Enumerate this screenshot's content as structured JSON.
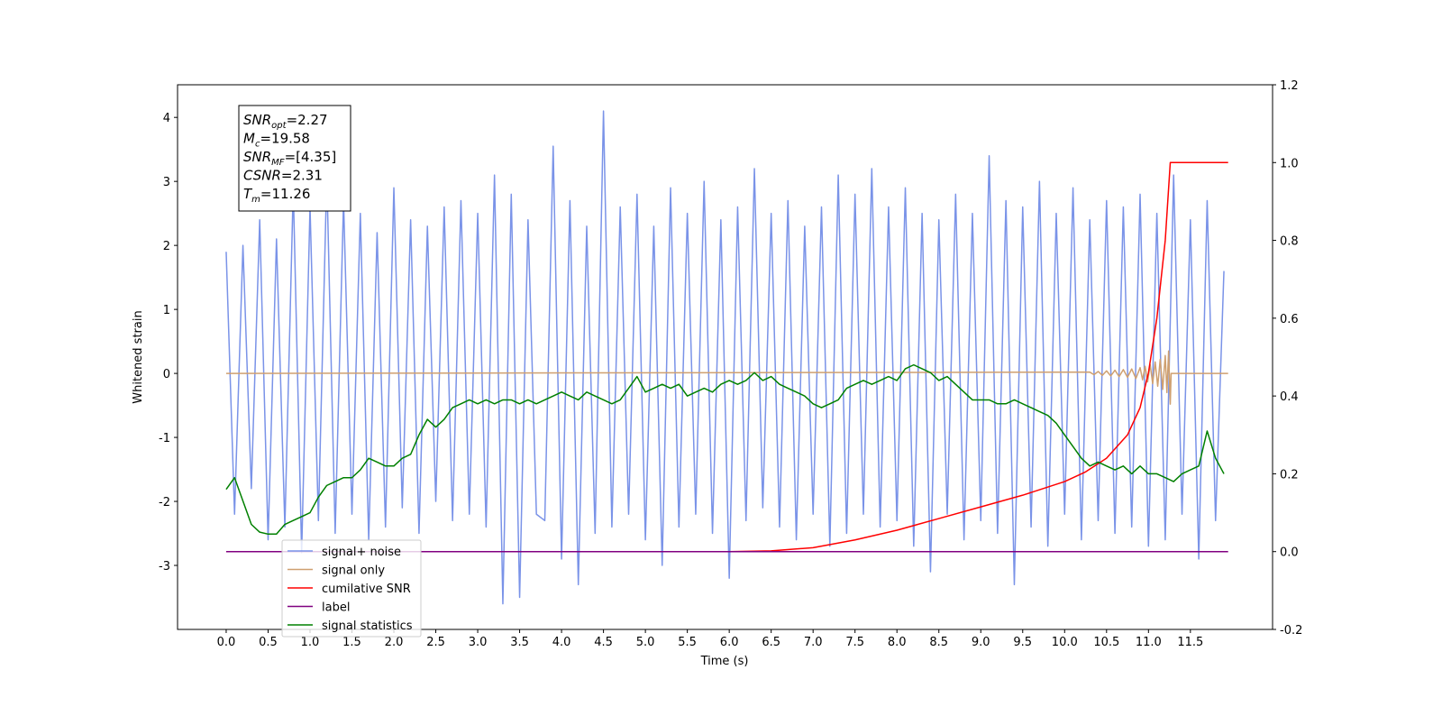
{
  "chart_data": {
    "type": "line",
    "xlabel": "Time (s)",
    "ylabel": "Whitened strain",
    "xlim": [
      -0.58,
      12.48
    ],
    "ylim": [
      -4.0,
      4.51
    ],
    "y2lim": [
      -0.2,
      1.2
    ],
    "xticks": [
      {
        "value": 0,
        "label": "0.0"
      },
      0.5,
      {
        "value": 1,
        "label": "1.0"
      },
      1.5,
      {
        "value": 2,
        "label": "2.0"
      },
      2.5,
      {
        "value": 3,
        "label": "3.0"
      },
      3.5,
      {
        "value": 4,
        "label": "4.0"
      },
      4.5,
      {
        "value": 5,
        "label": "5.0"
      },
      5.5,
      {
        "value": 6,
        "label": "6.0"
      },
      6.5,
      {
        "value": 7,
        "label": "7.0"
      },
      7.5,
      {
        "value": 8,
        "label": "8.0"
      },
      8.5,
      {
        "value": 9,
        "label": "9.0"
      },
      9.5,
      {
        "value": 10,
        "label": "10.0"
      },
      10.5,
      {
        "value": 11,
        "label": "11.0"
      },
      11.5
    ],
    "yticks": [
      -3,
      -2,
      -1,
      0,
      1,
      2,
      3,
      4
    ],
    "y2ticks": [
      -0.2,
      {
        "value": 0,
        "label": "0.0"
      },
      0.2,
      0.4,
      0.6,
      0.8,
      {
        "value": 1,
        "label": "1.0"
      },
      1.2
    ],
    "legend": "lower left",
    "annotation": [
      {
        "base": "SNR",
        "sub": "opt",
        "rest": "=2.27"
      },
      {
        "base": "M",
        "sub": "c",
        "rest": "=19.58"
      },
      {
        "base": "SNR",
        "sub": "MF",
        "rest": "=[4.35]"
      },
      {
        "base": "CSNR",
        "rest": "=2.31"
      },
      {
        "base": "T",
        "sub": "m",
        "rest": "=11.26"
      }
    ],
    "x": [
      0,
      0.1,
      0.2,
      0.3,
      0.4,
      0.5,
      0.6,
      0.7,
      0.8,
      0.9,
      1,
      1.1,
      1.2,
      1.3,
      1.4,
      1.5,
      1.6,
      1.7,
      1.8,
      1.9,
      2,
      2.1,
      2.2,
      2.3,
      2.4,
      2.5,
      2.6,
      2.7,
      2.8,
      2.9,
      3,
      3.1,
      3.2,
      3.3,
      3.4,
      3.5,
      3.6,
      3.7,
      3.8,
      3.9,
      4,
      4.1,
      4.2,
      4.3,
      4.4,
      4.5,
      4.6,
      4.7,
      4.8,
      4.9,
      5,
      5.1,
      5.2,
      5.3,
      5.4,
      5.5,
      5.6,
      5.7,
      5.8,
      5.9,
      6,
      6.1,
      6.2,
      6.3,
      6.4,
      6.5,
      6.6,
      6.7,
      6.8,
      6.9,
      7,
      7.1,
      7.2,
      7.3,
      7.4,
      7.5,
      7.6,
      7.7,
      7.8,
      7.9,
      8,
      8.1,
      8.2,
      8.3,
      8.4,
      8.5,
      8.6,
      8.7,
      8.8,
      8.9,
      9,
      9.1,
      9.2,
      9.3,
      9.4,
      9.5,
      9.6,
      9.7,
      9.8,
      9.9,
      10,
      10.1,
      10.2,
      10.3,
      10.4,
      10.5,
      10.6,
      10.7,
      10.8,
      10.9,
      11,
      11.1,
      11.2,
      11.3,
      11.4,
      11.5,
      11.6,
      11.7,
      11.8,
      11.9
    ],
    "series": [
      {
        "name": "signal+ noise",
        "color": "#7a93e8",
        "values": [
          1.9,
          -2.2,
          2.0,
          -1.8,
          2.4,
          -2.6,
          2.1,
          -2.4,
          2.9,
          -2.8,
          2.6,
          -2.3,
          3.1,
          -2.5,
          2.7,
          -2.2,
          2.5,
          -2.6,
          2.2,
          -2.4,
          2.9,
          -2.1,
          2.4,
          -2.5,
          2.3,
          -2.0,
          2.6,
          -2.3,
          2.7,
          -2.2,
          2.5,
          -2.4,
          3.1,
          -3.6,
          2.8,
          -3.5,
          2.4,
          -2.2,
          -2.3,
          3.55,
          -2.9,
          2.7,
          -3.3,
          2.3,
          -2.5,
          4.1,
          -2.4,
          2.6,
          -2.2,
          2.8,
          -2.6,
          2.3,
          -3.0,
          2.9,
          -2.4,
          2.5,
          -2.2,
          3.0,
          -2.5,
          2.4,
          -3.2,
          2.6,
          -2.3,
          3.2,
          -2.1,
          2.5,
          -2.4,
          2.7,
          -2.6,
          2.3,
          -2.2,
          2.6,
          -2.7,
          3.1,
          -2.5,
          2.8,
          -2.2,
          3.2,
          -2.4,
          2.6,
          -2.3,
          2.9,
          -2.7,
          2.5,
          -3.1,
          2.4,
          -2.2,
          2.8,
          -2.6,
          2.5,
          -2.3,
          3.4,
          -2.5,
          2.7,
          -3.3,
          2.6,
          -2.4,
          3.0,
          -2.7,
          2.5,
          -2.2,
          2.9,
          -2.6,
          2.4,
          -2.3,
          2.7,
          -2.5,
          2.6,
          -2.4,
          2.8,
          -2.7,
          2.5,
          -2.6,
          3.1,
          -2.2,
          2.4,
          -2.9,
          2.7,
          -2.3,
          1.6
        ]
      },
      {
        "name": "signal only",
        "color": "#cfa070",
        "x": [
          0,
          10.3,
          10.35,
          10.4,
          10.45,
          10.5,
          10.55,
          10.6,
          10.65,
          10.7,
          10.75,
          10.8,
          10.85,
          10.9,
          10.93,
          10.96,
          10.99,
          11.02,
          11.05,
          11.08,
          11.11,
          11.14,
          11.17,
          11.2,
          11.22,
          11.24,
          11.26,
          11.27,
          11.95
        ],
        "values": [
          0,
          0.02,
          -0.02,
          0.03,
          -0.03,
          0.04,
          -0.04,
          0.05,
          -0.05,
          0.06,
          -0.06,
          0.07,
          -0.08,
          0.09,
          -0.1,
          0.11,
          -0.13,
          0.14,
          -0.16,
          0.18,
          -0.2,
          0.22,
          -0.25,
          0.28,
          -0.3,
          0.35,
          -0.48,
          0,
          0
        ]
      },
      {
        "name": "cumilative SNR",
        "color": "#ff0000",
        "axis": "y2",
        "x": [
          0,
          6,
          6.5,
          7,
          7.5,
          8,
          8.5,
          9,
          9.5,
          10,
          10.25,
          10.5,
          10.75,
          10.9,
          11.0,
          11.1,
          11.2,
          11.26,
          11.95
        ],
        "values": [
          0,
          0,
          0.002,
          0.01,
          0.03,
          0.055,
          0.085,
          0.115,
          0.145,
          0.18,
          0.205,
          0.24,
          0.3,
          0.37,
          0.46,
          0.6,
          0.8,
          1.0,
          1.0
        ]
      },
      {
        "name": "label",
        "color": "#800080",
        "axis": "y2",
        "x": [
          0,
          11.95
        ],
        "values": [
          0,
          0
        ]
      },
      {
        "name": "signal statistics",
        "color": "#008000",
        "axis": "y2",
        "values": [
          0.16,
          0.19,
          0.13,
          0.07,
          0.05,
          0.045,
          0.045,
          0.07,
          0.08,
          0.09,
          0.1,
          0.14,
          0.17,
          0.18,
          0.19,
          0.19,
          0.21,
          0.24,
          0.23,
          0.22,
          0.22,
          0.24,
          0.25,
          0.3,
          0.34,
          0.32,
          0.34,
          0.37,
          0.38,
          0.39,
          0.38,
          0.39,
          0.38,
          0.39,
          0.39,
          0.38,
          0.39,
          0.38,
          0.39,
          0.4,
          0.41,
          0.4,
          0.39,
          0.41,
          0.4,
          0.39,
          0.38,
          0.39,
          0.42,
          0.45,
          0.41,
          0.42,
          0.43,
          0.42,
          0.43,
          0.4,
          0.41,
          0.42,
          0.41,
          0.43,
          0.44,
          0.43,
          0.44,
          0.46,
          0.44,
          0.45,
          0.43,
          0.42,
          0.41,
          0.4,
          0.38,
          0.37,
          0.38,
          0.39,
          0.42,
          0.43,
          0.44,
          0.43,
          0.44,
          0.45,
          0.44,
          0.47,
          0.48,
          0.47,
          0.46,
          0.44,
          0.45,
          0.43,
          0.41,
          0.39,
          0.39,
          0.39,
          0.38,
          0.38,
          0.39,
          0.38,
          0.37,
          0.36,
          0.35,
          0.33,
          0.3,
          0.27,
          0.24,
          0.22,
          0.23,
          0.22,
          0.21,
          0.22,
          0.2,
          0.22,
          0.2,
          0.2,
          0.19,
          0.18,
          0.2,
          0.21,
          0.22,
          0.31,
          0.24,
          0.2
        ]
      }
    ]
  }
}
